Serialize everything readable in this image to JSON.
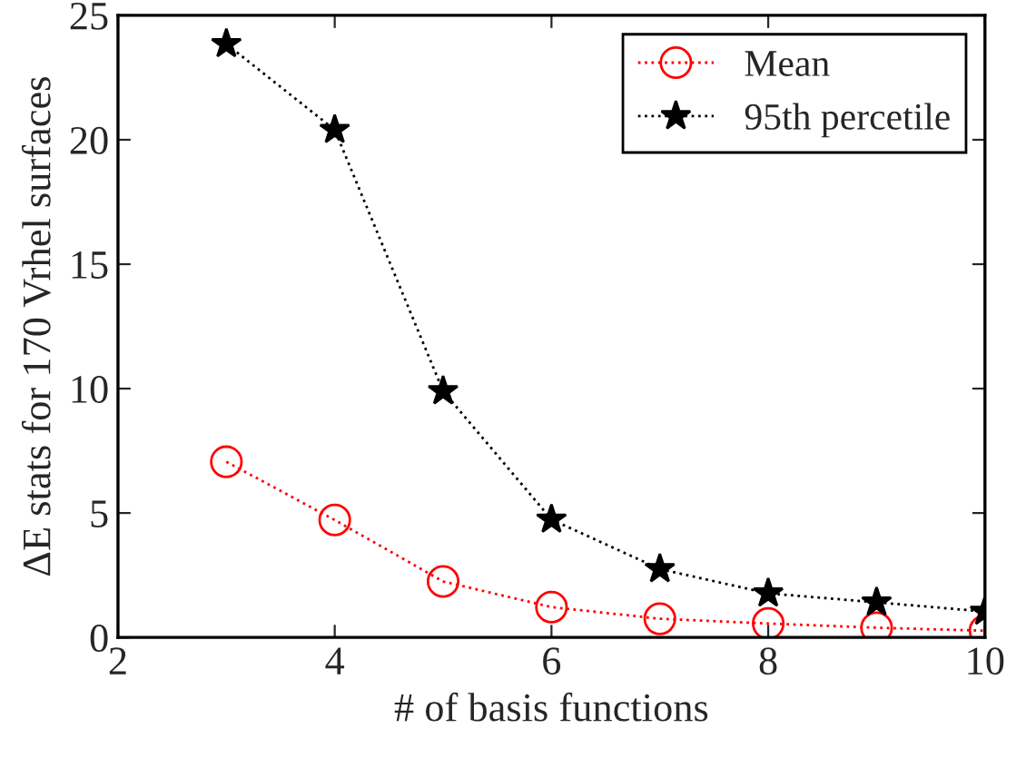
{
  "chart_data": {
    "type": "line",
    "xlabel": "# of basis functions",
    "ylabel": "ΔE stats for 170 Vrhel surfaces",
    "x": [
      3,
      4,
      5,
      6,
      7,
      8,
      9,
      10
    ],
    "series": [
      {
        "name": "Mean",
        "color": "#ff0000",
        "marker": "circle",
        "values": [
          7.06,
          4.72,
          2.25,
          1.22,
          0.75,
          0.56,
          0.39,
          0.27
        ]
      },
      {
        "name": "95th percetile",
        "color": "#000000",
        "marker": "star",
        "values": [
          23.85,
          20.4,
          9.9,
          4.74,
          2.75,
          1.77,
          1.41,
          1.04
        ]
      }
    ],
    "xlim": [
      2,
      10
    ],
    "xticks": [
      2,
      4,
      6,
      8,
      10
    ],
    "ylim": [
      0,
      25
    ],
    "yticks": [
      0,
      5,
      10,
      15,
      20,
      25
    ],
    "line_style": "dotted",
    "grid": false,
    "legend": "top right"
  }
}
